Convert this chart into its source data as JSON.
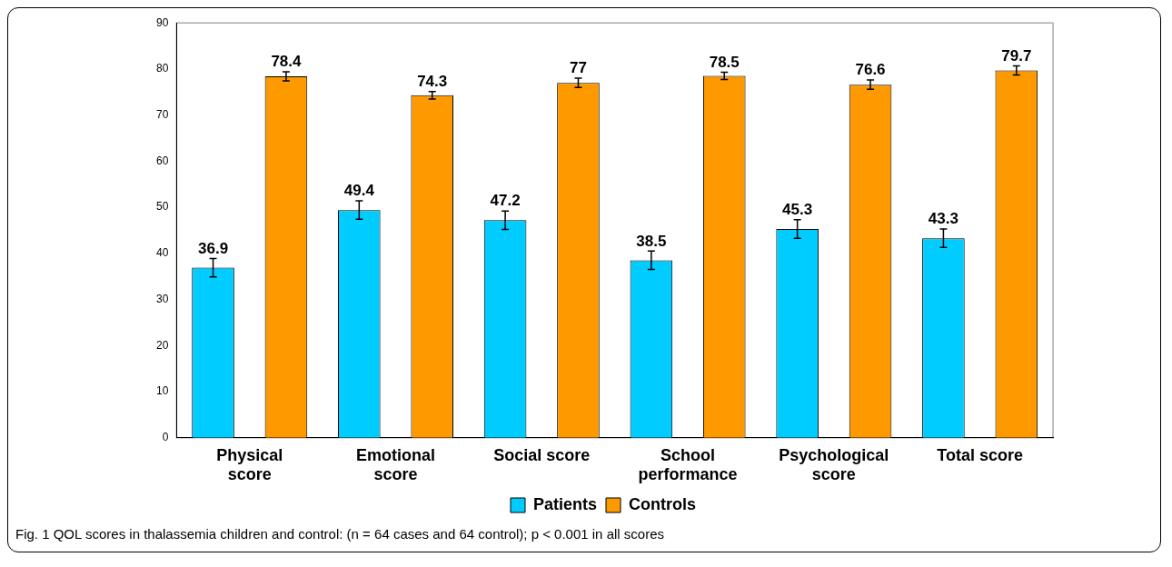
{
  "chart_data": {
    "type": "bar",
    "categories": [
      "Physical score",
      "Emotional score",
      "Social score",
      "School performance",
      "Psychological score",
      "Total score"
    ],
    "series": [
      {
        "name": "Patients",
        "color": "#00ccff",
        "values": [
          36.9,
          49.4,
          47.2,
          38.5,
          45.3,
          43.3
        ],
        "errors": [
          2,
          2,
          2,
          2,
          2,
          2
        ]
      },
      {
        "name": "Controls",
        "color": "#ff9900",
        "values": [
          78.4,
          74.3,
          77,
          78.5,
          76.6,
          79.7
        ],
        "errors": [
          1,
          0.8,
          1,
          0.8,
          1,
          1
        ]
      }
    ],
    "ylim": [
      0,
      90
    ],
    "yticks": [
      0,
      10,
      20,
      30,
      40,
      50,
      60,
      70,
      80,
      90
    ],
    "grid": false,
    "legend": "bottom",
    "data_labels": true,
    "annotations": [
      "Fig. 1 QOL scores in thalassemia children and control: (n = 64 cases and 64 control); p < 0.001 in all scores"
    ]
  }
}
